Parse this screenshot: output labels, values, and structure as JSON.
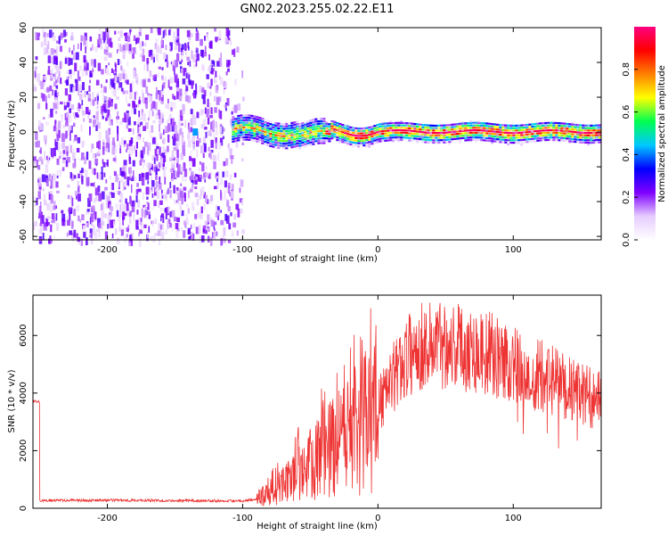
{
  "figure_title": "GN02.2023.255.02.22.E11",
  "chart_data": [
    {
      "type": "heatmap",
      "title": "",
      "xlabel": "Height of straight line (km)",
      "ylabel": "Frequency (Hz)",
      "xlim": [
        -255,
        165
      ],
      "ylim": [
        -62,
        60
      ],
      "x_ticks": [
        "-200",
        "-100",
        "0",
        "100"
      ],
      "y_ticks": [
        "-60",
        "-40",
        "-20",
        "0",
        "20",
        "40",
        "60"
      ],
      "colorbar": {
        "label": "Normalized spectral amplitude",
        "range": [
          0,
          1
        ],
        "ticks": [
          "0.0",
          "0.2",
          "0.4",
          "0.6",
          "0.8"
        ],
        "colors": [
          "#ffffff",
          "#e6ccff",
          "#7f00ff",
          "#0000ff",
          "#00c8ff",
          "#00ff50",
          "#ffff00",
          "#ff8000",
          "#ff0000",
          "#ff0080"
        ]
      },
      "regions": [
        {
          "x_range": [
            -255,
            -108
          ],
          "y_range": [
            -62,
            60
          ],
          "description": "broadband noise, amplitude ~0.05-0.25"
        },
        {
          "x_range": [
            -108,
            165
          ],
          "y_range": [
            -5,
            5
          ],
          "description": "narrow band centered near 0 Hz, amplitude up to ~1.0"
        }
      ]
    },
    {
      "type": "line",
      "title": "",
      "xlabel": "Height of straight line (km)",
      "ylabel": "SNR (10 * v/v)",
      "xlim": [
        -255,
        165
      ],
      "ylim": [
        0,
        7400
      ],
      "x_ticks": [
        "-200",
        "-100",
        "0",
        "100"
      ],
      "y_ticks": [
        "0",
        "2000",
        "4000",
        "6000"
      ],
      "series_color": "#ee3333",
      "series": [
        {
          "x": [
            -250,
            -200,
            -150,
            -100,
            -90,
            -80,
            -70,
            -60,
            -50,
            -40,
            -30,
            -20,
            -10,
            0,
            10,
            20,
            30,
            40,
            50,
            60,
            70,
            80,
            90,
            100,
            110,
            120,
            130,
            140,
            150,
            160,
            165
          ],
          "values": [
            250,
            260,
            250,
            240,
            300,
            550,
            800,
            1150,
            1450,
            1800,
            2200,
            2600,
            3000,
            3500,
            4400,
            5200,
            5600,
            5700,
            5750,
            5650,
            5500,
            5400,
            5200,
            5000,
            4800,
            4600,
            4400,
            4200,
            4000,
            3800,
            3700
          ]
        }
      ]
    }
  ]
}
